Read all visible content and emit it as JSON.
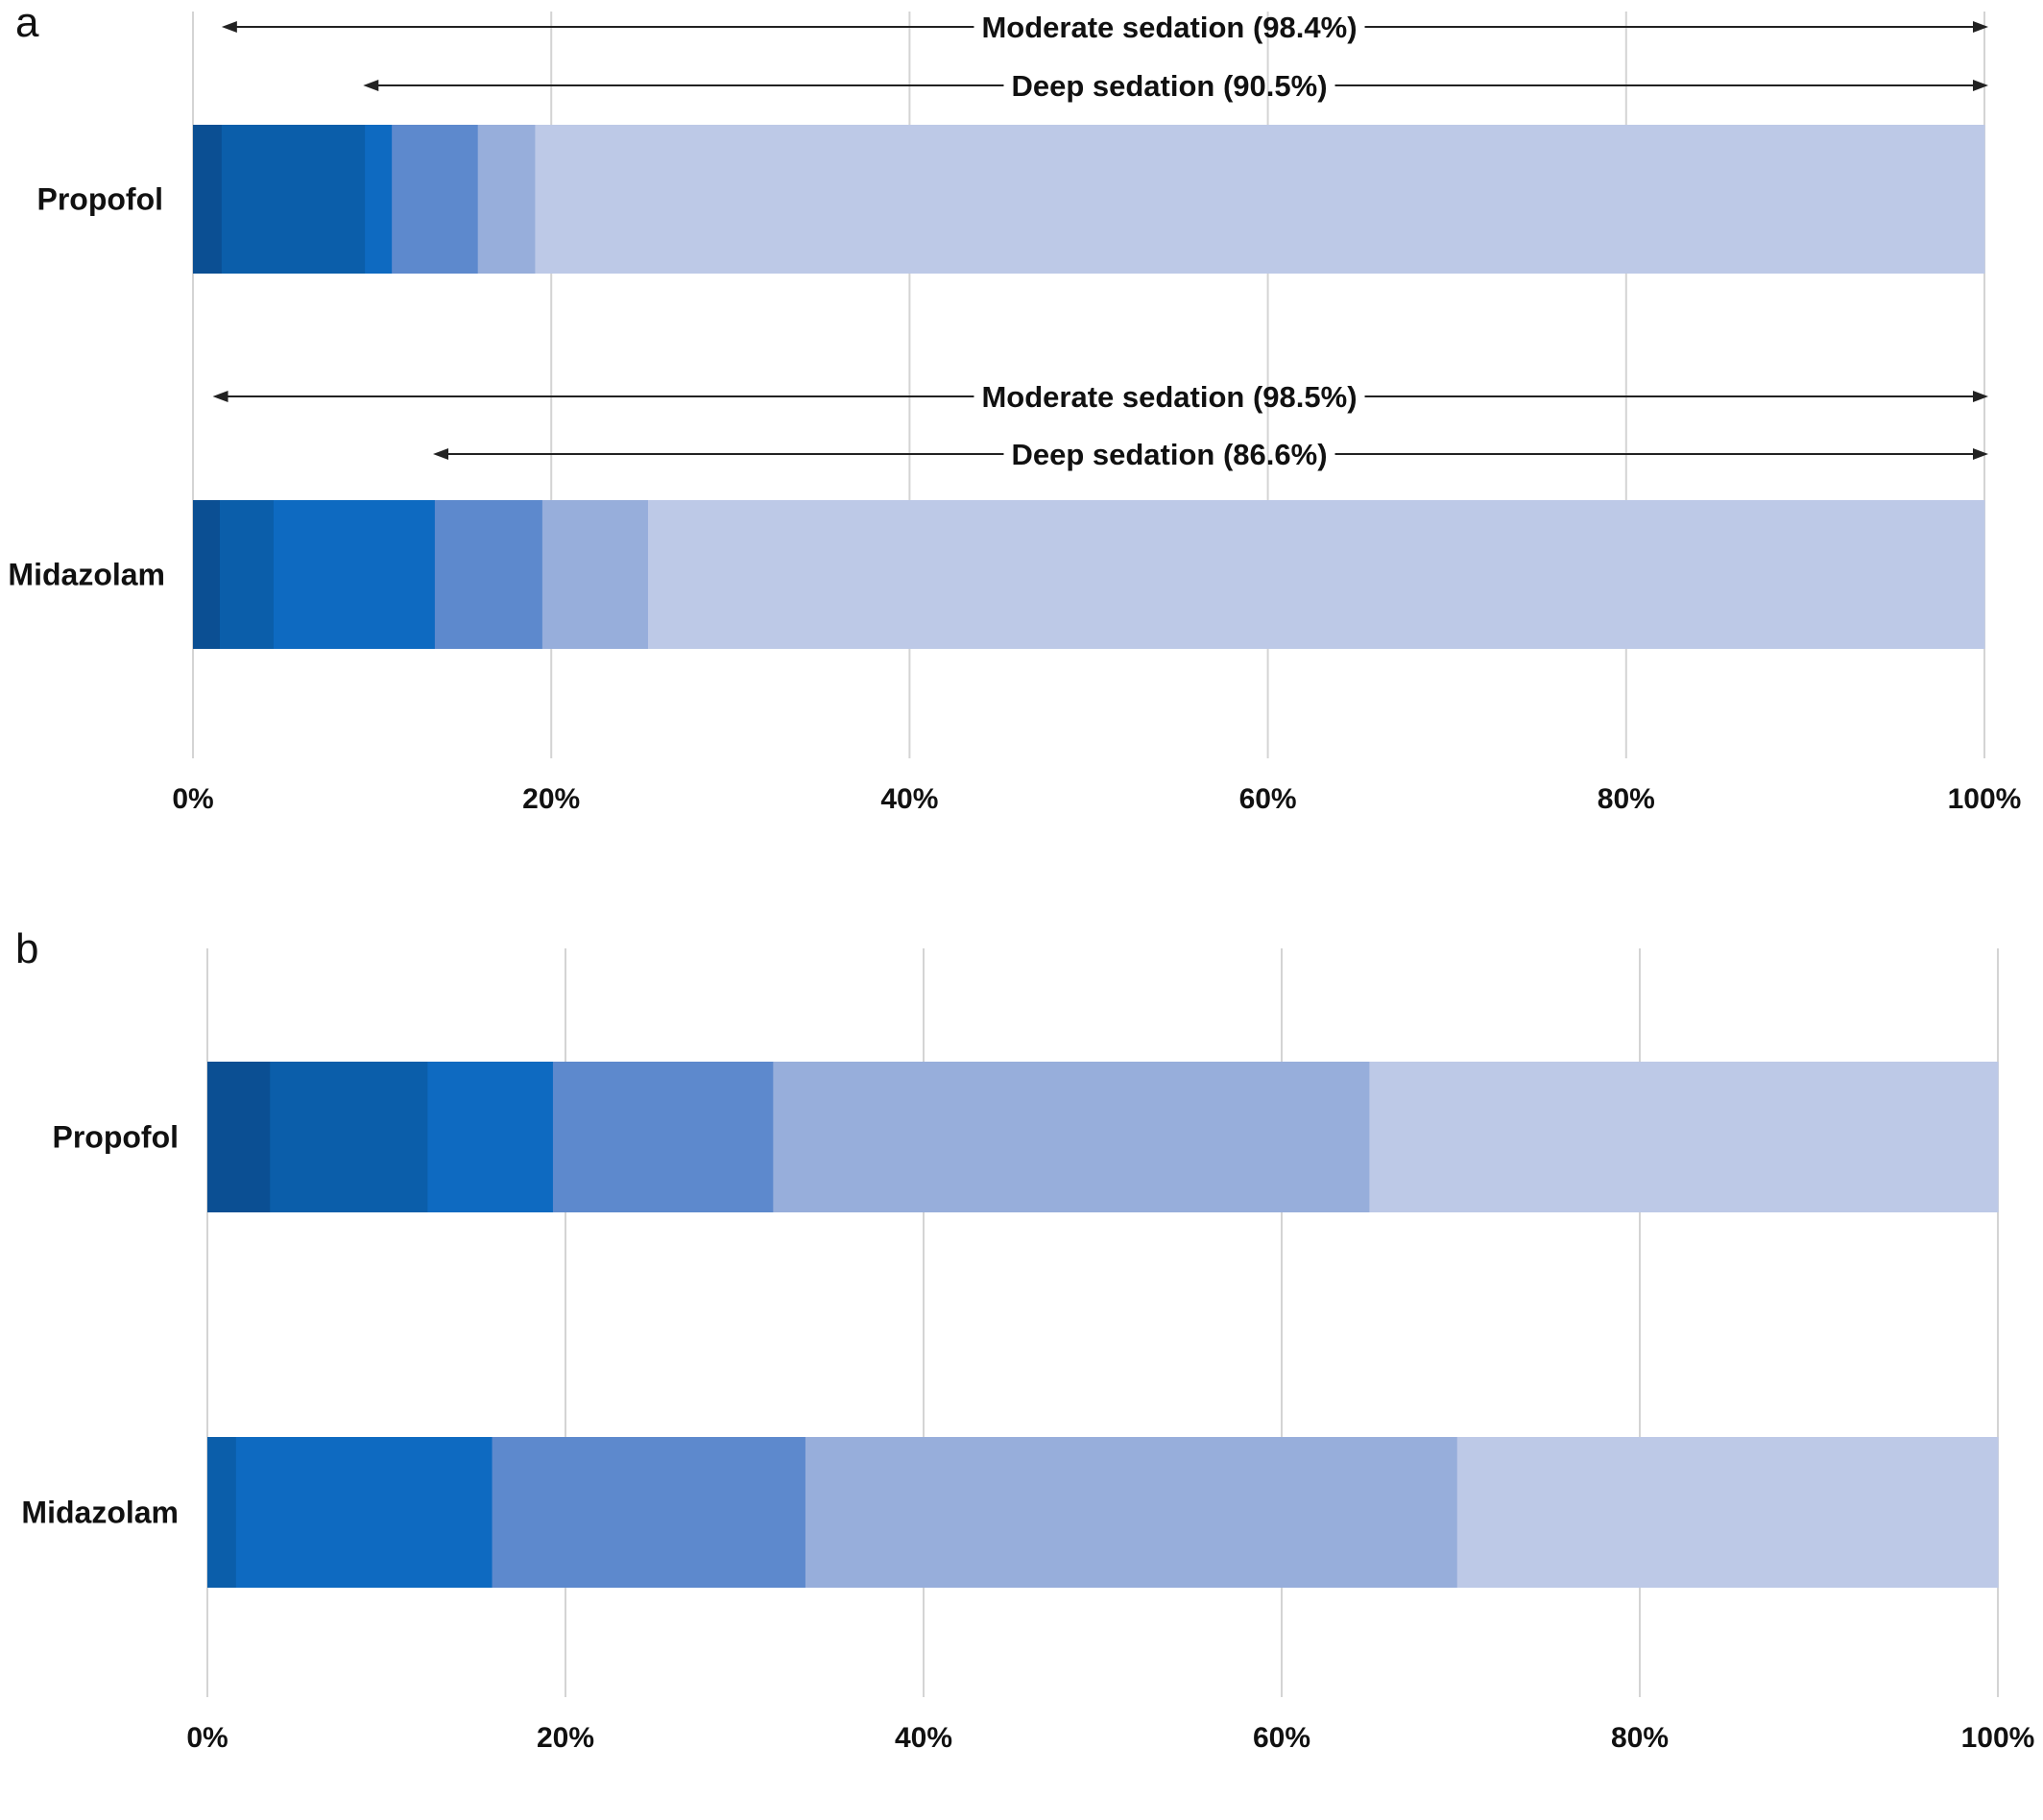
{
  "chart_data": [
    {
      "panel": "a",
      "type": "bar",
      "orientation": "horizontal",
      "stacked": true,
      "xlim": [
        0,
        100
      ],
      "ticks": [
        "0%",
        "20%",
        "40%",
        "60%",
        "80%",
        "100%"
      ],
      "grid": true,
      "categories": [
        "Propofol",
        "Midazolam"
      ],
      "segment_colors": [
        "#0b4f93",
        "#0b5eaa",
        "#0e6ac1",
        "#5d89cd",
        "#97aedb",
        "#bdc9e7"
      ],
      "bars": [
        {
          "category": "Propofol",
          "segments": [
            1.6,
            8.0,
            1.5,
            4.8,
            3.2,
            80.9
          ]
        },
        {
          "category": "Midazolam",
          "segments": [
            1.5,
            3.0,
            9.0,
            6.0,
            5.9,
            74.6
          ]
        }
      ],
      "annotations": [
        {
          "category": "Propofol",
          "text": "Moderate sedation (98.4%)",
          "start": 1.6
        },
        {
          "category": "Propofol",
          "text": "Deep sedation (90.5%)",
          "start": 9.5
        },
        {
          "category": "Midazolam",
          "text": "Moderate sedation (98.5%)",
          "start": 1.1
        },
        {
          "category": "Midazolam",
          "text": "Deep sedation (86.6%)",
          "start": 13.4
        }
      ]
    },
    {
      "panel": "b",
      "type": "bar",
      "orientation": "horizontal",
      "stacked": true,
      "xlim": [
        0,
        100
      ],
      "ticks": [
        "0%",
        "20%",
        "40%",
        "60%",
        "80%",
        "100%"
      ],
      "grid": true,
      "categories": [
        "Propofol",
        "Midazolam"
      ],
      "segment_colors": [
        "#0b4f93",
        "#0b5eaa",
        "#0e6ac1",
        "#5d89cd",
        "#97aedb",
        "#bdc9e7"
      ],
      "bars": [
        {
          "category": "Propofol",
          "segments": [
            3.5,
            8.8,
            7.0,
            12.3,
            33.3,
            35.1
          ]
        },
        {
          "category": "Midazolam",
          "segments": [
            0,
            1.6,
            14.3,
            17.5,
            36.4,
            30.2
          ]
        }
      ]
    }
  ]
}
